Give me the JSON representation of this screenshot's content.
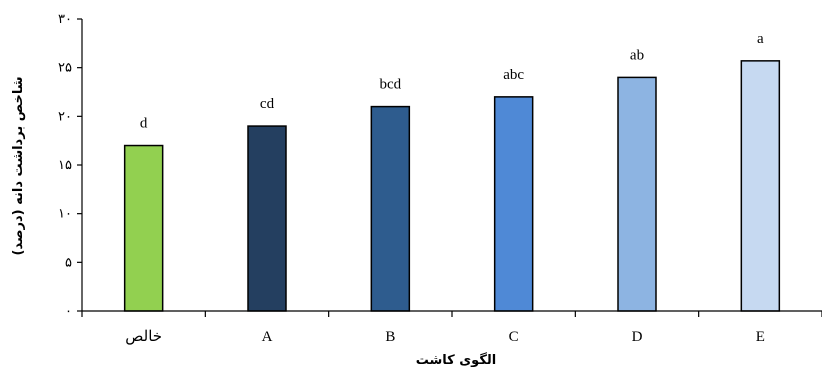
{
  "chart_data": {
    "type": "bar",
    "categories": [
      "خالص",
      "A",
      "B",
      "C",
      "D",
      "E"
    ],
    "values": [
      17,
      19,
      21,
      22,
      24,
      25.7
    ],
    "data_labels": [
      "d",
      "cd",
      "bcd",
      "abc",
      "ab",
      "a"
    ],
    "bar_colors": [
      "#92d050",
      "#243f60",
      "#2e5c8e",
      "#4f89d6",
      "#8db4e2",
      "#c6d9f1"
    ],
    "ylim": [
      0,
      30
    ],
    "yticks": [
      0,
      5,
      10,
      15,
      20,
      25,
      30
    ],
    "ytick_labels": [
      "۰",
      "۵",
      "۱۰",
      "۱۵",
      "۲۰",
      "۲۵",
      "۳۰"
    ],
    "xlabel": "الگوی کاشت",
    "ylabel": "شاخص برداشت دانه (درصد)",
    "grid": false,
    "legend": "none"
  }
}
